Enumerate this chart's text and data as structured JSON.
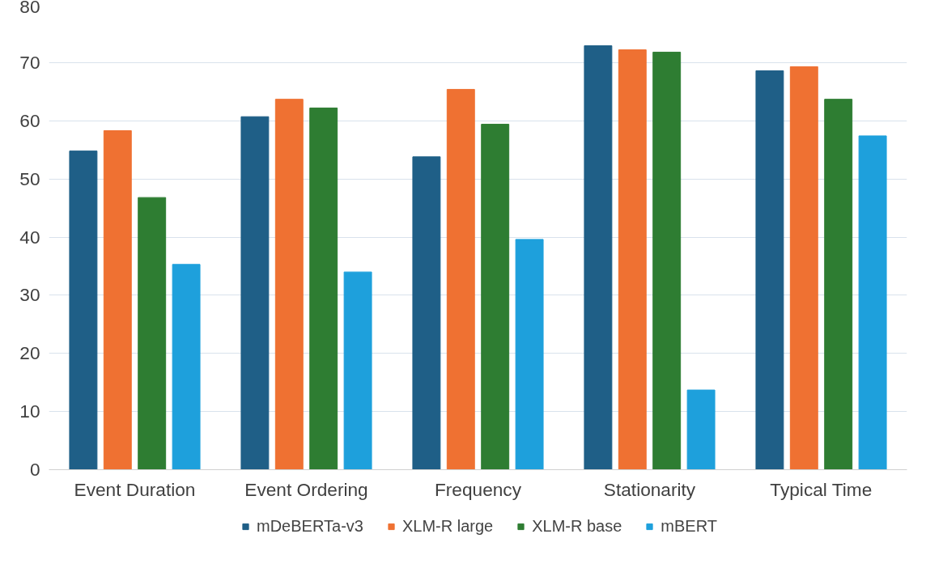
{
  "chart_data": {
    "type": "bar",
    "categories": [
      "Event Duration",
      "Event Ordering",
      "Frequency",
      "Stationarity",
      "Typical Time"
    ],
    "series": [
      {
        "name": "mDeBERTa-v3",
        "color": "#1f5f87",
        "values": [
          54.8,
          60.7,
          53.8,
          72.9,
          68.6
        ]
      },
      {
        "name": "XLM-R large",
        "color": "#ef7132",
        "values": [
          58.3,
          63.7,
          65.4,
          72.2,
          69.3
        ]
      },
      {
        "name": "XLM-R base",
        "color": "#2e7d32",
        "values": [
          46.8,
          62.2,
          59.4,
          71.8,
          63.7
        ]
      },
      {
        "name": "mBERT",
        "color": "#1ea0dc",
        "values": [
          35.3,
          34.0,
          39.6,
          13.7,
          57.4
        ]
      }
    ],
    "ylim": [
      0,
      80
    ],
    "yticks": [
      0,
      10,
      20,
      30,
      40,
      50,
      60,
      70,
      80
    ],
    "grid": "y",
    "legend": "bottom"
  }
}
